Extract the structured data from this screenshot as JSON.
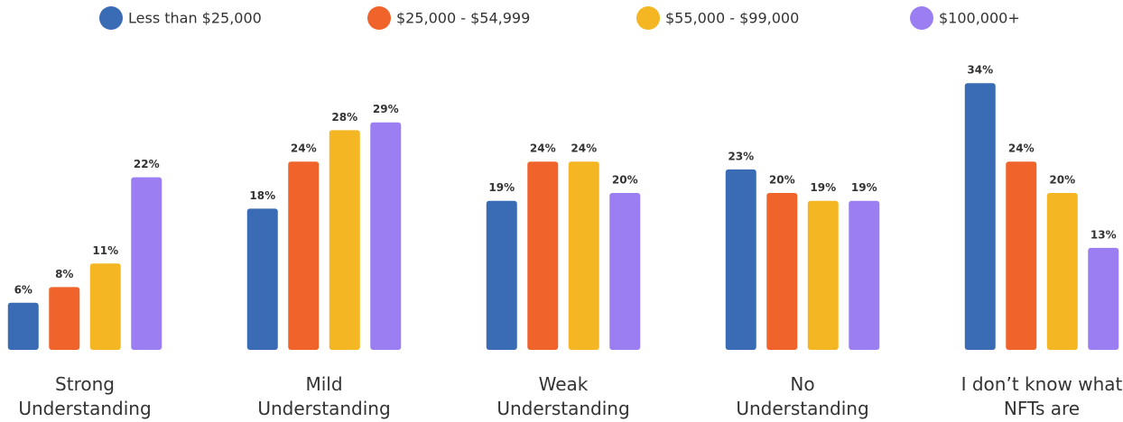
{
  "chart_data": {
    "type": "bar",
    "categories": [
      "Strong Understanding",
      "Mild Understanding",
      "Weak Understanding",
      "No Understanding",
      "I don’t know what NFTs are"
    ],
    "series": [
      {
        "name": "Less than $25,000",
        "color": "#3a6cb5",
        "values": [
          6,
          18,
          19,
          23,
          34
        ],
        "value_labels": [
          "6%",
          "18%",
          "19%",
          "23%",
          "34%"
        ]
      },
      {
        "name": "$25,000 - $54,999",
        "color": "#f0642c",
        "values": [
          8,
          24,
          24,
          20,
          24
        ],
        "value_labels": [
          "8%",
          "24%",
          "24%",
          "20%",
          "24%"
        ]
      },
      {
        "name": "$55,000 - $99,000",
        "color": "#f5b623",
        "values": [
          11,
          28,
          24,
          19,
          20
        ],
        "value_labels": [
          "11%",
          "28%",
          "24%",
          "19%",
          "20%"
        ]
      },
      {
        "name": "$100,000+",
        "color": "#9b7ff2",
        "values": [
          22,
          29,
          20,
          19,
          13
        ],
        "value_labels": [
          "22%",
          "29%",
          "20%",
          "19%",
          "13%"
        ]
      }
    ]
  }
}
